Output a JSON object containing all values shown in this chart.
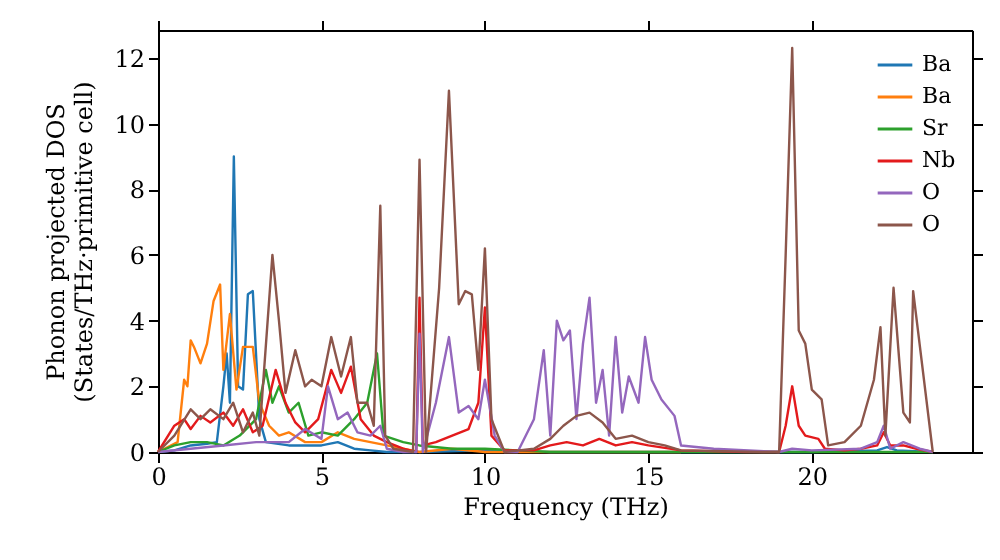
{
  "chart_data": {
    "type": "line",
    "xlabel": "Frequency (THz)",
    "ylabel": "Phonon projected DOS\n(States/THz·primitive cell)",
    "xlim": [
      0,
      24.9
    ],
    "ylim": [
      0,
      12.85
    ],
    "xticks": [
      0,
      5,
      10,
      15,
      20
    ],
    "yticks": [
      0,
      2,
      4,
      6,
      8,
      10,
      12
    ],
    "grid": false,
    "legend": "top right",
    "line_style": "solid",
    "marker": "none",
    "series": [
      {
        "name": "Ba",
        "color": "#1f77b4",
        "x": [
          0,
          0.5,
          1,
          1.5,
          1.8,
          2.0,
          2.1,
          2.2,
          2.32,
          2.45,
          2.6,
          2.75,
          2.9,
          3.1,
          3.3,
          4,
          5,
          5.5,
          6,
          6.5,
          7,
          8,
          10,
          12,
          16,
          20,
          22,
          22.3,
          22.6,
          23.7
        ],
        "values": [
          0,
          0.05,
          0.2,
          0.25,
          0.3,
          2.0,
          3.0,
          1.5,
          9.0,
          2.0,
          1.9,
          4.8,
          4.9,
          1.0,
          0.3,
          0.2,
          0.2,
          0.3,
          0.1,
          0.05,
          0,
          0,
          0.05,
          0,
          0,
          0,
          0.05,
          0.15,
          0.05,
          0
        ]
      },
      {
        "name": "Ba",
        "color": "#ff7f0e",
        "x": [
          0,
          0.6,
          0.8,
          0.9,
          1.0,
          1.1,
          1.3,
          1.5,
          1.7,
          1.9,
          2.0,
          2.2,
          2.4,
          2.6,
          2.9,
          3.1,
          3.4,
          3.7,
          4.0,
          4.5,
          5,
          5.5,
          6,
          6.5,
          7,
          8,
          9,
          10,
          12,
          16
        ],
        "values": [
          0,
          0.3,
          2.2,
          2.0,
          3.4,
          3.2,
          2.7,
          3.3,
          4.6,
          5.1,
          2.5,
          4.2,
          1.9,
          3.2,
          3.2,
          1.5,
          0.8,
          0.5,
          0.6,
          0.3,
          0.3,
          0.6,
          0.4,
          0.3,
          0.2,
          0,
          0.1,
          0,
          0,
          0
        ]
      },
      {
        "name": "Sr",
        "color": "#2ca02c",
        "x": [
          0,
          0.5,
          1,
          1.5,
          2,
          2.5,
          3.0,
          3.3,
          3.5,
          3.7,
          4.0,
          4.3,
          4.6,
          5,
          5.5,
          6,
          6.4,
          6.7,
          6.9,
          7.5,
          8,
          9,
          10,
          11,
          12,
          16,
          20,
          23.7
        ],
        "values": [
          0,
          0.2,
          0.3,
          0.3,
          0.2,
          0.5,
          1.0,
          2.5,
          1.5,
          2.0,
          1.2,
          1.5,
          0.5,
          0.6,
          0.5,
          1.0,
          1.5,
          3.0,
          0.5,
          0.3,
          0.2,
          0.1,
          0.1,
          0.05,
          0,
          0,
          0,
          0
        ]
      },
      {
        "name": "Nb",
        "color": "#e31a1c",
        "x": [
          0,
          0.5,
          0.8,
          1.0,
          1.3,
          1.6,
          2.0,
          2.3,
          2.6,
          2.9,
          3.2,
          3.6,
          3.9,
          4.2,
          4.5,
          4.9,
          5.3,
          5.6,
          5.9,
          6.2,
          6.6,
          7.0,
          7.5,
          7.9,
          8.0,
          8.1,
          8.5,
          9.0,
          9.5,
          9.8,
          10.0,
          10.2,
          10.6,
          11.5,
          12,
          12.5,
          13,
          13.5,
          14,
          14.5,
          15,
          16,
          18,
          19,
          19.2,
          19.4,
          19.6,
          19.8,
          20.2,
          20.4,
          21,
          21.5,
          22,
          22.2,
          22.4,
          22.8,
          23.2,
          23.7
        ],
        "values": [
          0,
          0.8,
          1.0,
          0.7,
          1.1,
          0.9,
          1.2,
          0.8,
          1.3,
          0.6,
          0.8,
          2.5,
          1.5,
          0.9,
          0.6,
          1.0,
          2.5,
          1.8,
          2.6,
          1.0,
          0.5,
          0.3,
          0.1,
          0,
          4.7,
          0.2,
          0.3,
          0.5,
          0.7,
          1.5,
          4.4,
          0.5,
          0.05,
          0.05,
          0.2,
          0.3,
          0.2,
          0.4,
          0.2,
          0.3,
          0.2,
          0.05,
          0,
          0,
          0.8,
          2.0,
          0.8,
          0.5,
          0.4,
          0.1,
          0.05,
          0.1,
          0.2,
          0.6,
          0.2,
          0.2,
          0.1,
          0
        ]
      },
      {
        "name": "O",
        "color": "#9467bd",
        "x": [
          0,
          1,
          2,
          3,
          3.5,
          4,
          4.5,
          5,
          5.2,
          5.5,
          5.8,
          6.1,
          6.5,
          6.8,
          7.0,
          7.5,
          7.9,
          8.0,
          8.1,
          8.5,
          8.9,
          9.2,
          9.5,
          9.8,
          10.0,
          10.3,
          10.6,
          11.0,
          11.5,
          11.8,
          12.0,
          12.2,
          12.4,
          12.6,
          12.8,
          13.0,
          13.2,
          13.4,
          13.6,
          13.8,
          14.0,
          14.2,
          14.4,
          14.7,
          14.9,
          15.1,
          15.4,
          15.8,
          16.0,
          17,
          19,
          19.4,
          20,
          21.5,
          22,
          22.2,
          22.4,
          22.8,
          23.3,
          23.7
        ],
        "values": [
          0,
          0.1,
          0.2,
          0.3,
          0.3,
          0.3,
          0.7,
          0.4,
          2.0,
          1.0,
          1.2,
          0.6,
          0.5,
          0.8,
          0.1,
          0,
          0,
          3.6,
          0,
          1.5,
          3.5,
          1.2,
          1.4,
          1.0,
          2.2,
          0.5,
          0,
          0,
          1.0,
          3.1,
          0.5,
          4.0,
          3.4,
          3.7,
          1.0,
          3.3,
          4.7,
          1.5,
          2.5,
          0.5,
          3.5,
          1.2,
          2.3,
          1.5,
          3.5,
          2.2,
          1.6,
          1.1,
          0.2,
          0.1,
          0,
          0.1,
          0.05,
          0.1,
          0.3,
          0.8,
          0.1,
          0.3,
          0.1,
          0
        ]
      },
      {
        "name": "O",
        "color": "#8c564b",
        "x": [
          0,
          0.5,
          1.0,
          1.3,
          1.6,
          2.0,
          2.3,
          2.6,
          2.9,
          3.1,
          3.5,
          3.7,
          3.9,
          4.2,
          4.5,
          4.7,
          5.0,
          5.3,
          5.6,
          5.9,
          6.1,
          6.4,
          6.6,
          6.8,
          6.95,
          7.2,
          7.8,
          8.0,
          8.2,
          8.6,
          8.9,
          9.2,
          9.4,
          9.6,
          9.8,
          10.0,
          10.2,
          10.6,
          11.5,
          12.0,
          12.4,
          12.8,
          13.2,
          13.6,
          14.0,
          14.5,
          15.0,
          15.5,
          16,
          18.5,
          19.0,
          19.2,
          19.4,
          19.6,
          19.8,
          20.0,
          20.3,
          20.5,
          21,
          21.5,
          21.9,
          22.1,
          22.25,
          22.5,
          22.8,
          23.0,
          23.1,
          23.7
        ],
        "values": [
          0,
          0.5,
          1.3,
          1.0,
          1.3,
          1.0,
          1.5,
          0.6,
          1.2,
          0.5,
          6.0,
          4.0,
          1.8,
          3.1,
          2.0,
          2.2,
          2.0,
          3.5,
          2.3,
          3.5,
          1.5,
          1.5,
          0.8,
          7.5,
          0.5,
          0.1,
          0,
          8.9,
          0,
          5.0,
          11.0,
          4.5,
          4.9,
          4.8,
          2.5,
          6.2,
          1.0,
          0,
          0.1,
          0.4,
          0.8,
          1.1,
          1.2,
          0.9,
          0.4,
          0.5,
          0.3,
          0.2,
          0.05,
          0,
          0,
          6.0,
          12.3,
          3.7,
          3.3,
          1.9,
          1.6,
          0.2,
          0.3,
          0.8,
          2.2,
          3.8,
          0.5,
          5.0,
          1.2,
          0.9,
          4.9,
          0
        ]
      }
    ]
  }
}
